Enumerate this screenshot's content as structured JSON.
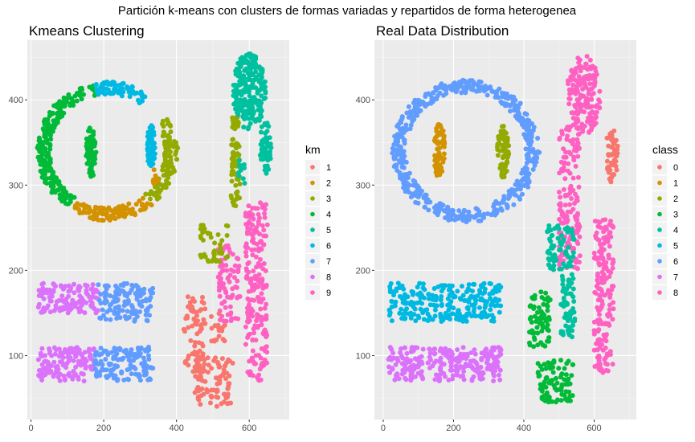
{
  "suptitle": "Partición k-means con clusters de formas variadas y repartidos de forma heterogenea",
  "palette": {
    "c1": "#F8766D",
    "c2": "#D39200",
    "c3": "#93AA00",
    "c4": "#00BA38",
    "c5": "#00C19F",
    "c6": "#00B9E3",
    "c7": "#619CFF",
    "c8": "#DB72FB",
    "c9": "#FF61C3"
  },
  "chart_data": [
    {
      "type": "scatter",
      "title": "Kmeans Clustering",
      "xlabel": "",
      "ylabel": "",
      "xlim": [
        -10,
        710
      ],
      "ylim": [
        25,
        470
      ],
      "xticks": [
        0,
        200,
        400,
        600
      ],
      "yticks": [
        100,
        200,
        300,
        400
      ],
      "grid": true,
      "legend": {
        "title": "km",
        "placement": "right",
        "entries": [
          {
            "label": "1",
            "color": "#F8766D"
          },
          {
            "label": "2",
            "color": "#D39200"
          },
          {
            "label": "3",
            "color": "#93AA00"
          },
          {
            "label": "4",
            "color": "#00BA38"
          },
          {
            "label": "5",
            "color": "#00C19F"
          },
          {
            "label": "6",
            "color": "#00B9E3"
          },
          {
            "label": "7",
            "color": "#619CFF"
          },
          {
            "label": "8",
            "color": "#DB72FB"
          },
          {
            "label": "9",
            "color": "#FF61C3"
          }
        ]
      },
      "groups": [
        {
          "color": "#00BA38",
          "shape": "ring",
          "cx": 210,
          "cy": 340,
          "rx": 190,
          "ry": 80,
          "a0": 100,
          "a1": 235,
          "n": 230
        },
        {
          "color": "#00B9E3",
          "shape": "ring",
          "cx": 210,
          "cy": 340,
          "rx": 190,
          "ry": 80,
          "a0": 55,
          "a1": 100,
          "n": 80
        },
        {
          "color": "#D39200",
          "shape": "ring",
          "cx": 210,
          "cy": 340,
          "rx": 190,
          "ry": 80,
          "a0": 240,
          "a1": 310,
          "n": 110
        },
        {
          "color": "#93AA00",
          "shape": "ring",
          "cx": 210,
          "cy": 340,
          "rx": 190,
          "ry": 80,
          "a0": 310,
          "a1": 345,
          "n": 45
        },
        {
          "color": "#93AA00",
          "shape": "ring",
          "cx": 210,
          "cy": 340,
          "rx": 190,
          "ry": 80,
          "a0": -15,
          "a1": 30,
          "n": 60
        },
        {
          "color": "#00BA38",
          "shape": "blob",
          "cx": 165,
          "cy": 340,
          "rx": 14,
          "ry": 32,
          "n": 70
        },
        {
          "color": "#00B9E3",
          "shape": "blob",
          "cx": 330,
          "cy": 345,
          "rx": 12,
          "ry": 25,
          "n": 60
        },
        {
          "color": "#D39200",
          "shape": "rect",
          "x0": 335,
          "x1": 350,
          "y0": 300,
          "y1": 320,
          "n": 10
        },
        {
          "color": "#93AA00",
          "shape": "rect",
          "x0": 550,
          "x1": 575,
          "y0": 275,
          "y1": 380,
          "n": 65
        },
        {
          "color": "#00C19F",
          "shape": "blob",
          "cx": 600,
          "cy": 410,
          "rx": 45,
          "ry": 45,
          "n": 230
        },
        {
          "color": "#00C19F",
          "shape": "blob",
          "cx": 645,
          "cy": 345,
          "rx": 16,
          "ry": 32,
          "n": 55
        },
        {
          "color": "#00C19F",
          "shape": "rect",
          "x0": 570,
          "x1": 590,
          "y0": 300,
          "y1": 330,
          "n": 14
        },
        {
          "color": "#FF61C3",
          "shape": "rect",
          "x0": 590,
          "x1": 650,
          "y0": 70,
          "y1": 280,
          "n": 210
        },
        {
          "color": "#FF61C3",
          "shape": "rect",
          "x0": 515,
          "x1": 575,
          "y0": 140,
          "y1": 230,
          "n": 75
        },
        {
          "color": "#93AA00",
          "shape": "rect",
          "x0": 465,
          "x1": 545,
          "y0": 210,
          "y1": 255,
          "n": 45
        },
        {
          "color": "#F8766D",
          "shape": "rect",
          "x0": 420,
          "x1": 480,
          "y0": 80,
          "y1": 170,
          "n": 80
        },
        {
          "color": "#F8766D",
          "shape": "rect",
          "x0": 450,
          "x1": 555,
          "y0": 40,
          "y1": 100,
          "n": 90
        },
        {
          "color": "#F8766D",
          "shape": "rect",
          "x0": 495,
          "x1": 535,
          "y0": 115,
          "y1": 150,
          "n": 20
        },
        {
          "color": "#DB72FB",
          "shape": "rect",
          "x0": 20,
          "x1": 185,
          "y0": 150,
          "y1": 185,
          "n": 130
        },
        {
          "color": "#619CFF",
          "shape": "rect",
          "x0": 185,
          "x1": 335,
          "y0": 140,
          "y1": 185,
          "n": 130
        },
        {
          "color": "#DB72FB",
          "shape": "rect",
          "x0": 20,
          "x1": 175,
          "y0": 70,
          "y1": 110,
          "n": 130
        },
        {
          "color": "#619CFF",
          "shape": "rect",
          "x0": 175,
          "x1": 335,
          "y0": 70,
          "y1": 110,
          "n": 140
        }
      ]
    },
    {
      "type": "scatter",
      "title": "Real Data Distribution",
      "xlabel": "",
      "ylabel": "",
      "xlim": [
        -25,
        720
      ],
      "ylim": [
        25,
        470
      ],
      "xticks": [
        0,
        200,
        400,
        600
      ],
      "yticks": [
        100,
        200,
        300,
        400
      ],
      "grid": true,
      "legend": {
        "title": "class",
        "placement": "right",
        "entries": [
          {
            "label": "0",
            "color": "#F8766D"
          },
          {
            "label": "1",
            "color": "#D39200"
          },
          {
            "label": "2",
            "color": "#93AA00"
          },
          {
            "label": "3",
            "color": "#00BA38"
          },
          {
            "label": "4",
            "color": "#00C19F"
          },
          {
            "label": "5",
            "color": "#00B9E3"
          },
          {
            "label": "6",
            "color": "#619CFF"
          },
          {
            "label": "7",
            "color": "#DB72FB"
          },
          {
            "label": "8",
            "color": "#FF61C3"
          }
        ]
      },
      "groups": [
        {
          "color": "#619CFF",
          "shape": "ring",
          "cx": 235,
          "cy": 340,
          "rx": 205,
          "ry": 82,
          "a0": 0,
          "a1": 360,
          "n": 520
        },
        {
          "color": "#D39200",
          "shape": "blob",
          "cx": 160,
          "cy": 340,
          "rx": 16,
          "ry": 33,
          "n": 70
        },
        {
          "color": "#93AA00",
          "shape": "blob",
          "cx": 340,
          "cy": 340,
          "rx": 18,
          "ry": 32,
          "n": 70
        },
        {
          "color": "#FF61C3",
          "shape": "blob",
          "cx": 570,
          "cy": 405,
          "rx": 48,
          "ry": 48,
          "n": 180
        },
        {
          "color": "#FF61C3",
          "shape": "rect",
          "x0": 500,
          "x1": 560,
          "y0": 200,
          "y1": 370,
          "n": 150
        },
        {
          "color": "#FF61C3",
          "shape": "rect",
          "x0": 600,
          "x1": 655,
          "y0": 80,
          "y1": 260,
          "n": 180
        },
        {
          "color": "#F8766D",
          "shape": "blob",
          "cx": 650,
          "cy": 335,
          "rx": 18,
          "ry": 32,
          "n": 60
        },
        {
          "color": "#00C19F",
          "shape": "rect",
          "x0": 465,
          "x1": 545,
          "y0": 200,
          "y1": 255,
          "n": 70
        },
        {
          "color": "#00C19F",
          "shape": "rect",
          "x0": 505,
          "x1": 545,
          "y0": 120,
          "y1": 200,
          "n": 60
        },
        {
          "color": "#00BA38",
          "shape": "rect",
          "x0": 415,
          "x1": 475,
          "y0": 110,
          "y1": 175,
          "n": 70
        },
        {
          "color": "#00BA38",
          "shape": "rect",
          "x0": 440,
          "x1": 540,
          "y0": 45,
          "y1": 95,
          "n": 90
        },
        {
          "color": "#00B9E3",
          "shape": "rect",
          "x0": 15,
          "x1": 335,
          "y0": 140,
          "y1": 185,
          "n": 260
        },
        {
          "color": "#DB72FB",
          "shape": "rect",
          "x0": 15,
          "x1": 335,
          "y0": 70,
          "y1": 110,
          "n": 270
        }
      ]
    }
  ]
}
